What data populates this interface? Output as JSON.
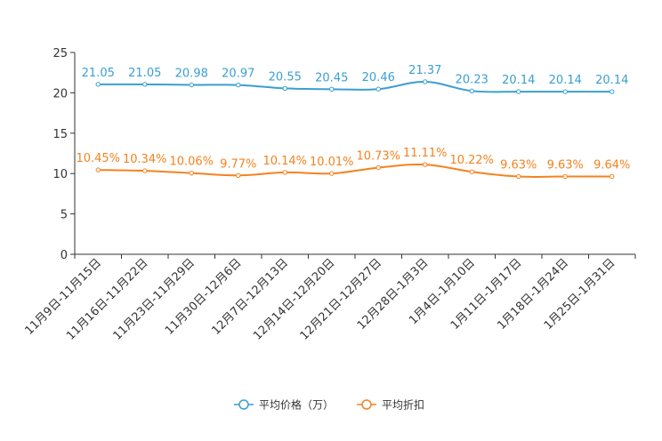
{
  "chart_data": {
    "type": "line",
    "categories": [
      "11月9日-11月15日",
      "11月16日-11月22日",
      "11月23日-11月29日",
      "11月30日-12月6日",
      "12月7日-12月13日",
      "12月14日-12月20日",
      "12月21日-12月27日",
      "12月28日-1月3日",
      "1月4日-1月10日",
      "1月11日-1月17日",
      "1月18日-1月24日",
      "1月25日-1月31日"
    ],
    "ylim": [
      0,
      25
    ],
    "yticks": [
      0,
      5,
      10,
      15,
      20,
      25
    ],
    "series": [
      {
        "name": "平均价格（万）",
        "color": "#3a9fd1",
        "values": [
          21.05,
          21.05,
          20.98,
          20.97,
          20.55,
          20.45,
          20.46,
          21.37,
          20.23,
          20.14,
          20.14,
          20.14
        ],
        "labels": [
          "21.05",
          "21.05",
          "20.98",
          "20.97",
          "20.55",
          "20.45",
          "20.46",
          "21.37",
          "20.23",
          "20.14",
          "20.14",
          "20.14"
        ]
      },
      {
        "name": "平均折扣",
        "color": "#f5821f",
        "values": [
          10.45,
          10.34,
          10.06,
          9.77,
          10.14,
          10.01,
          10.73,
          11.11,
          10.22,
          9.63,
          9.63,
          9.64
        ],
        "labels": [
          "10.45%",
          "10.34%",
          "10.06%",
          "9.77%",
          "10.14%",
          "10.01%",
          "10.73%",
          "11.11%",
          "10.22%",
          "9.63%",
          "9.63%",
          "9.64%"
        ]
      }
    ],
    "legend_position": "bottom-center",
    "grid": false
  }
}
